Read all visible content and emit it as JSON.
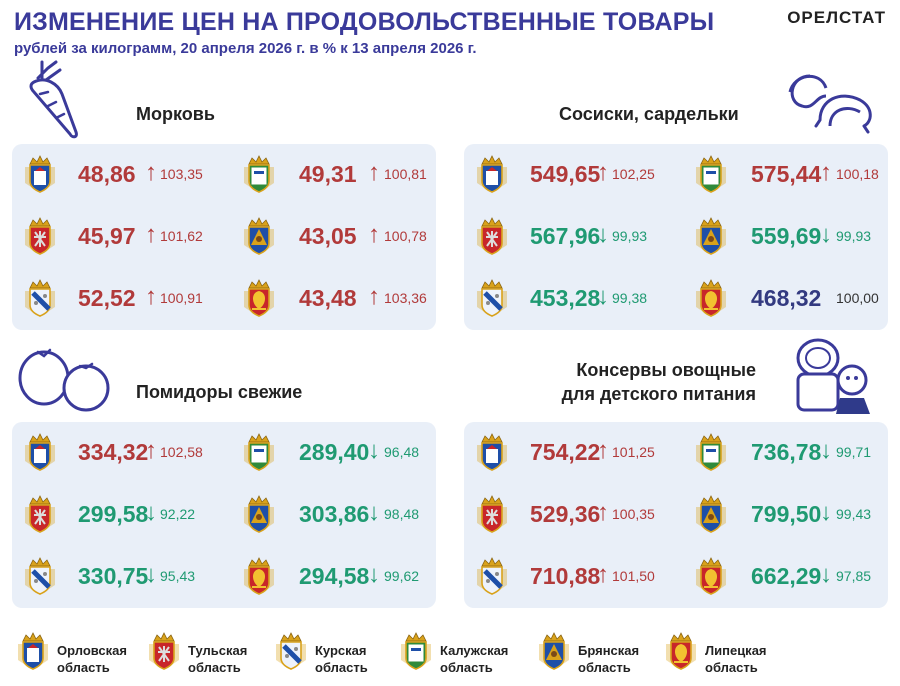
{
  "header": {
    "title": "ИЗМЕНЕНИЕ ЦЕН НА ПРОДОВОЛЬСТВЕННЫЕ ТОВАРЫ",
    "subtitle": "рублей за килограмм, 20 апреля 2026 г. в % к 13 апреля 2026 г.",
    "brand": "ОРЕЛСТАТ"
  },
  "colors": {
    "up": "#b13a3a",
    "down": "#1f9a72",
    "flat": "#333a80",
    "panel": "#e9eff8",
    "title": "#3a3a9a"
  },
  "arrows": {
    "up": "↑",
    "down": "↓"
  },
  "sections": [
    {
      "title": "Морковь",
      "icon": "carrot-icon",
      "rows": [
        [
          {
            "region": "orel",
            "price": "48,86",
            "pct": "103,35",
            "dir": "up"
          },
          {
            "region": "kaluga",
            "price": "49,31",
            "pct": "100,81",
            "dir": "up"
          }
        ],
        [
          {
            "region": "tula",
            "price": "45,97",
            "pct": "101,62",
            "dir": "up"
          },
          {
            "region": "bryansk",
            "price": "43,05",
            "pct": "100,78",
            "dir": "up"
          }
        ],
        [
          {
            "region": "kursk",
            "price": "52,52",
            "pct": "100,91",
            "dir": "up"
          },
          {
            "region": "lipetsk",
            "price": "43,48",
            "pct": "103,36",
            "dir": "up"
          }
        ]
      ]
    },
    {
      "title": "Сосиски, сардельки",
      "icon": "sausage-icon",
      "rows": [
        [
          {
            "region": "orel",
            "price": "549,65",
            "pct": "102,25",
            "dir": "up"
          },
          {
            "region": "kaluga",
            "price": "575,44",
            "pct": "100,18",
            "dir": "up"
          }
        ],
        [
          {
            "region": "tula",
            "price": "567,96",
            "pct": "99,93",
            "dir": "down"
          },
          {
            "region": "bryansk",
            "price": "559,69",
            "pct": "99,93",
            "dir": "down"
          }
        ],
        [
          {
            "region": "kursk",
            "price": "453,28",
            "pct": "99,38",
            "dir": "down"
          },
          {
            "region": "lipetsk",
            "price": "468,32",
            "pct": "100,00",
            "dir": "flat"
          }
        ]
      ]
    },
    {
      "title": "Помидоры свежие",
      "icon": "tomato-icon",
      "rows": [
        [
          {
            "region": "orel",
            "price": "334,32",
            "pct": "102,58",
            "dir": "up"
          },
          {
            "region": "kaluga",
            "price": "289,40",
            "pct": "96,48",
            "dir": "down"
          }
        ],
        [
          {
            "region": "tula",
            "price": "299,58",
            "pct": "92,22",
            "dir": "down"
          },
          {
            "region": "bryansk",
            "price": "303,86",
            "pct": "98,48",
            "dir": "down"
          }
        ],
        [
          {
            "region": "kursk",
            "price": "330,75",
            "pct": "95,43",
            "dir": "down"
          },
          {
            "region": "lipetsk",
            "price": "294,58",
            "pct": "99,62",
            "dir": "down"
          }
        ]
      ]
    },
    {
      "title": "Консервы овощные\nдля детского питания",
      "icon": "baby-food-can-icon",
      "rows": [
        [
          {
            "region": "orel",
            "price": "754,22",
            "pct": "101,25",
            "dir": "up"
          },
          {
            "region": "kaluga",
            "price": "736,78",
            "pct": "99,71",
            "dir": "down"
          }
        ],
        [
          {
            "region": "tula",
            "price": "529,36",
            "pct": "100,35",
            "dir": "up"
          },
          {
            "region": "bryansk",
            "price": "799,50",
            "pct": "99,43",
            "dir": "down"
          }
        ],
        [
          {
            "region": "kursk",
            "price": "710,88",
            "pct": "101,50",
            "dir": "up"
          },
          {
            "region": "lipetsk",
            "price": "662,29",
            "pct": "97,85",
            "dir": "down"
          }
        ]
      ]
    }
  ],
  "legend": [
    {
      "region": "orel",
      "label": "Орловская\nобласть"
    },
    {
      "region": "tula",
      "label": "Тульская\nобласть"
    },
    {
      "region": "kursk",
      "label": "Курская\nобласть"
    },
    {
      "region": "kaluga",
      "label": "Калужская\nобласть"
    },
    {
      "region": "bryansk",
      "label": "Брянская\nобласть"
    },
    {
      "region": "lipetsk",
      "label": "Липецкая\nобласть"
    }
  ]
}
